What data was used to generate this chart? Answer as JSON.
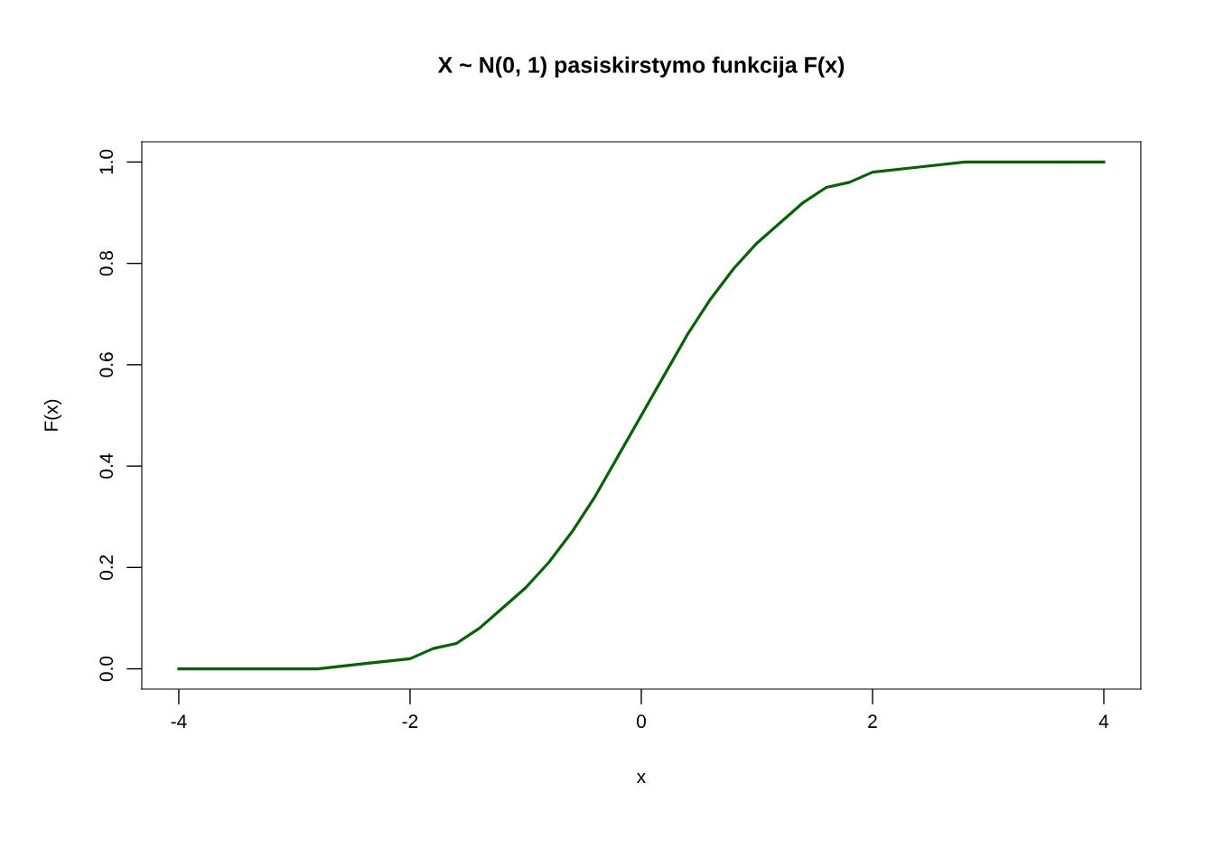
{
  "chart_data": {
    "type": "line",
    "title": "X ~ N(0, 1) pasiskirstymo funkcija F(x)",
    "xlabel": "x",
    "ylabel": "F(x)",
    "x": [
      -4,
      -3.6,
      -3.2,
      -2.8,
      -2.4,
      -2,
      -1.8,
      -1.6,
      -1.4,
      -1.2,
      -1,
      -0.8,
      -0.6,
      -0.4,
      -0.2,
      0,
      0.2,
      0.4,
      0.6,
      0.8,
      1,
      1.2,
      1.4,
      1.6,
      1.8,
      2,
      2.4,
      2.8,
      3.2,
      3.6,
      4
    ],
    "series": [
      {
        "color": "#006400",
        "values": [
          0,
          0,
          0,
          0,
          0.01,
          0.02,
          0.04,
          0.05,
          0.08,
          0.12,
          0.16,
          0.21,
          0.27,
          0.34,
          0.42,
          0.5,
          0.58,
          0.66,
          0.73,
          0.79,
          0.84,
          0.88,
          0.92,
          0.95,
          0.96,
          0.98,
          0.99,
          1,
          1,
          1,
          1
        ]
      }
    ],
    "xlim": [
      -4.32,
      4.32
    ],
    "ylim": [
      -0.04,
      1.04
    ],
    "xticks": [
      -4,
      -2,
      0,
      2,
      4
    ],
    "yticks": [
      {
        "value": 0,
        "label": "0.0"
      },
      {
        "value": 0.2,
        "label": "0.2"
      },
      {
        "value": 0.4,
        "label": "0.4"
      },
      {
        "value": 0.6,
        "label": "0.6"
      },
      {
        "value": 0.8,
        "label": "0.8"
      },
      {
        "value": 1,
        "label": "1.0"
      }
    ],
    "grid": false,
    "marker": "none",
    "line_style": "solid"
  }
}
